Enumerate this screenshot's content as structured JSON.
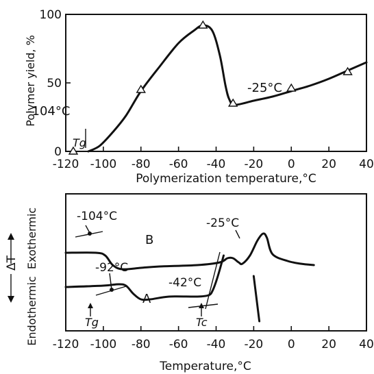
{
  "chart_data": [
    {
      "type": "line",
      "xlabel": "Polymerization temperature,°C",
      "ylabel": "Polymer yield, %",
      "xlim": [
        -120,
        40
      ],
      "ylim": [
        0,
        100
      ],
      "xticks": [
        "-120",
        "-100",
        "-80",
        "-60",
        "-40",
        "-20",
        "0",
        "20",
        "40"
      ],
      "yticks": [
        "0",
        "50",
        "100"
      ],
      "series": [
        {
          "curve": [
            [
              -108,
              0
            ],
            [
              -102,
              4
            ],
            [
              -95,
              14
            ],
            [
              -88,
              26
            ],
            [
              -80,
              44
            ],
            [
              -70,
              62
            ],
            [
              -60,
              79
            ],
            [
              -52,
              88
            ],
            [
              -47,
              92
            ],
            [
              -42,
              88
            ],
            [
              -38,
              70
            ],
            [
              -35,
              48
            ],
            [
              -33,
              38
            ],
            [
              -30,
              34
            ],
            [
              -20,
              37
            ],
            [
              -10,
              40
            ],
            [
              0,
              44
            ],
            [
              10,
              48
            ],
            [
              20,
              53
            ],
            [
              30,
              59
            ],
            [
              40,
              65
            ]
          ],
          "points": [
            [
              -116,
              0
            ],
            [
              -80,
              45
            ],
            [
              -47,
              92
            ],
            [
              -31,
              35
            ],
            [
              0,
              46
            ],
            [
              30,
              58
            ]
          ]
        }
      ],
      "annotations": [
        {
          "text": "-104°C",
          "x": -104,
          "y": 0
        },
        {
          "text": "Tg",
          "x": -104,
          "y": 0
        },
        {
          "text": "-25°C",
          "x": -25,
          "y": 38
        }
      ]
    },
    {
      "type": "line",
      "xlabel": "Temperature,°C",
      "ylabel": "ΔT",
      "xlim": [
        -120,
        40
      ],
      "xticks": [
        "-120",
        "-100",
        "-80",
        "-60",
        "-40",
        "-20",
        "0",
        "20",
        "40"
      ],
      "side_labels": {
        "exo": "Exothermic",
        "endo": "Endothermic"
      },
      "series": [
        {
          "name": "B",
          "curve": [
            [
              -120,
              57
            ],
            [
              -104,
              57
            ],
            [
              -99,
              55
            ],
            [
              -95,
              48
            ],
            [
              -90,
              45
            ],
            [
              -80,
              46
            ],
            [
              -70,
              47
            ],
            [
              -50,
              48
            ],
            [
              -38,
              50
            ],
            [
              -34,
              53
            ],
            [
              -31,
              53
            ],
            [
              -28,
              50
            ],
            [
              -26,
              49
            ],
            [
              -22,
              55
            ],
            [
              -18,
              66
            ],
            [
              -15,
              71
            ],
            [
              -13,
              68
            ],
            [
              -10,
              56
            ],
            [
              -2,
              51
            ],
            [
              5,
              49
            ],
            [
              12,
              48
            ]
          ]
        },
        {
          "name": "A",
          "curve": [
            [
              -120,
              32
            ],
            [
              -100,
              33
            ],
            [
              -92,
              34
            ],
            [
              -88,
              33
            ],
            [
              -84,
              27
            ],
            [
              -80,
              23
            ],
            [
              -75,
              23
            ],
            [
              -65,
              25
            ],
            [
              -50,
              25
            ],
            [
              -44,
              26
            ],
            [
              -42,
              29
            ],
            [
              -40,
              36
            ],
            [
              -38,
              45
            ],
            [
              -36,
              55
            ]
          ],
          "dropline": [
            [
              -20,
              40
            ],
            [
              -17,
              7
            ]
          ]
        }
      ],
      "annotations": [
        {
          "text": "-104°C",
          "x": -104,
          "series": "B"
        },
        {
          "text": "-25°C",
          "x": -25,
          "series": "B"
        },
        {
          "text": "-92°C",
          "x": -92,
          "series": "A"
        },
        {
          "text": "-42°C",
          "x": -42,
          "series": "A"
        },
        {
          "text": "Tg",
          "x": -104,
          "series": "A"
        },
        {
          "text": "Tc",
          "x": -42,
          "series": "A"
        }
      ]
    }
  ]
}
